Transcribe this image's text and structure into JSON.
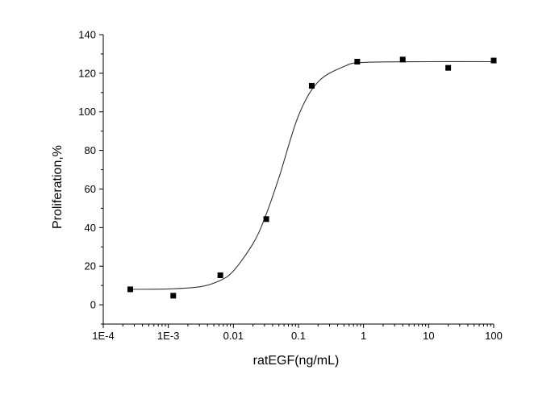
{
  "chart_data": {
    "type": "scatter",
    "title": "",
    "xlabel": "ratEGF(ng/mL)",
    "ylabel": "Proliferation,%",
    "xscale": "log",
    "xlim": [
      0.0001,
      100
    ],
    "ylim": [
      -10,
      140
    ],
    "xticks": [
      {
        "value": 0.0001,
        "label": "1E-4"
      },
      {
        "value": 0.001,
        "label": "1E-3"
      },
      {
        "value": 0.01,
        "label": "0.01"
      },
      {
        "value": 0.1,
        "label": "0.1"
      },
      {
        "value": 1,
        "label": "1"
      },
      {
        "value": 10,
        "label": "10"
      },
      {
        "value": 100,
        "label": "100"
      }
    ],
    "yticks": [
      {
        "value": 0,
        "label": "0"
      },
      {
        "value": 20,
        "label": "20"
      },
      {
        "value": 40,
        "label": "40"
      },
      {
        "value": 60,
        "label": "60"
      },
      {
        "value": 80,
        "label": "80"
      },
      {
        "value": 100,
        "label": "100"
      },
      {
        "value": 120,
        "label": "120"
      },
      {
        "value": 140,
        "label": "140"
      }
    ],
    "grid": false,
    "legend": "none",
    "series": [
      {
        "type": "scatter",
        "marker": "square",
        "color": "#000000",
        "points": [
          {
            "x": 0.00026,
            "y": 8
          },
          {
            "x": 0.00119,
            "y": 4.7
          },
          {
            "x": 0.0063,
            "y": 15.3
          },
          {
            "x": 0.032,
            "y": 44.4
          },
          {
            "x": 0.16,
            "y": 113.5
          },
          {
            "x": 0.8,
            "y": 126
          },
          {
            "x": 4,
            "y": 127.1
          },
          {
            "x": 20,
            "y": 122.8
          },
          {
            "x": 100,
            "y": 126.6
          }
        ]
      },
      {
        "type": "line",
        "smooth": true,
        "color": "#333333",
        "points": [
          {
            "x": 0.00026,
            "y": 8
          },
          {
            "x": 0.001,
            "y": 8.2
          },
          {
            "x": 0.003,
            "y": 9.3
          },
          {
            "x": 0.006,
            "y": 12.3
          },
          {
            "x": 0.01,
            "y": 17.5
          },
          {
            "x": 0.02,
            "y": 31.7
          },
          {
            "x": 0.03,
            "y": 44.5
          },
          {
            "x": 0.05,
            "y": 65.8
          },
          {
            "x": 0.1,
            "y": 98
          },
          {
            "x": 0.2,
            "y": 115.5
          },
          {
            "x": 0.5,
            "y": 123.5
          },
          {
            "x": 1,
            "y": 125.6
          },
          {
            "x": 10,
            "y": 126
          },
          {
            "x": 100,
            "y": 126
          }
        ]
      }
    ]
  }
}
